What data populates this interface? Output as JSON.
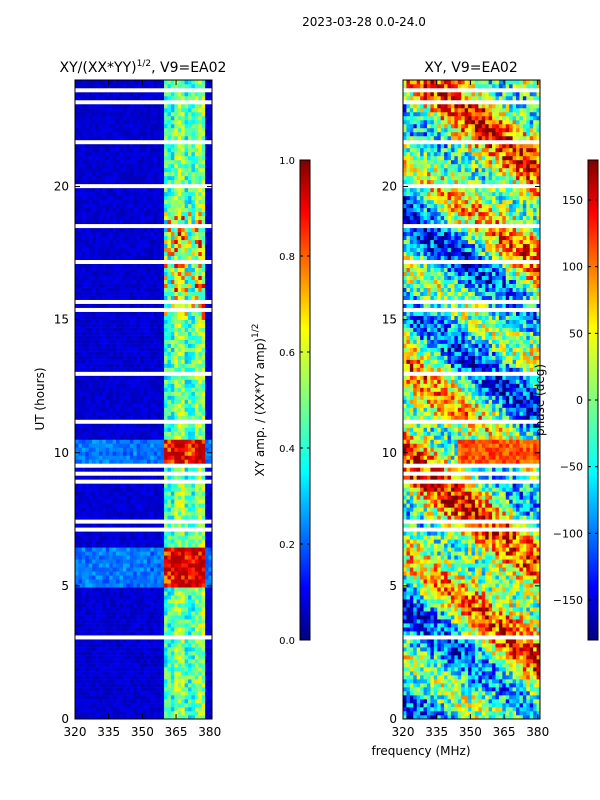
{
  "suptitle": "2023-03-28 0.0-24.0",
  "chart_data": [
    {
      "type": "heatmap",
      "title_main": "XY/(XX*YY)",
      "title_sup": "1/2",
      "title_tail": ", V9=EA02",
      "xlabel": "",
      "ylabel": "UT (hours)",
      "xlim": [
        320,
        381
      ],
      "ylim": [
        0,
        24
      ],
      "xticks": [
        320,
        335,
        350,
        365,
        380
      ],
      "yticks": [
        0,
        5,
        10,
        15,
        20
      ],
      "colorbar": {
        "label_main": "XY amp. / (XX*YY amp)",
        "label_sup": "1/2",
        "range": [
          0.0,
          1.0
        ],
        "ticks": [
          "0.0",
          "0.2",
          "0.4",
          "0.6",
          "0.8",
          "1.0"
        ],
        "tick_values": [
          0.0,
          0.2,
          0.4,
          0.6,
          0.8,
          1.0
        ]
      },
      "description_values": {
        "low_band_mhz": [
          320,
          360
        ],
        "low_band_level": 0.05,
        "high_band_mhz": [
          360,
          378
        ],
        "high_band_level_range": [
          0.3,
          0.95
        ],
        "elevated_hours": [
          [
            5,
            6.5
          ],
          [
            9.5,
            10.5
          ]
        ]
      }
    },
    {
      "type": "heatmap",
      "title_main": "XY, V9=EA02",
      "xlabel": "frequency (MHz)",
      "ylabel": "",
      "xlim": [
        320,
        381
      ],
      "ylim": [
        0,
        24
      ],
      "xticks": [
        320,
        335,
        350,
        365,
        380
      ],
      "yticks": [
        0,
        5,
        10,
        15,
        20
      ],
      "colorbar": {
        "label_main": "phase (deg)",
        "range": [
          -180,
          180
        ],
        "ticks": [
          "−150",
          "−100",
          "−50",
          "0",
          "50",
          "100",
          "150"
        ],
        "tick_values": [
          -150,
          -100,
          -50,
          0,
          50,
          100,
          150
        ]
      }
    }
  ],
  "colors": {
    "jet": [
      "#00007f",
      "#0000ff",
      "#007fff",
      "#00ffff",
      "#7fff7f",
      "#ffff00",
      "#ff7f00",
      "#ff0000",
      "#7f0000"
    ]
  }
}
